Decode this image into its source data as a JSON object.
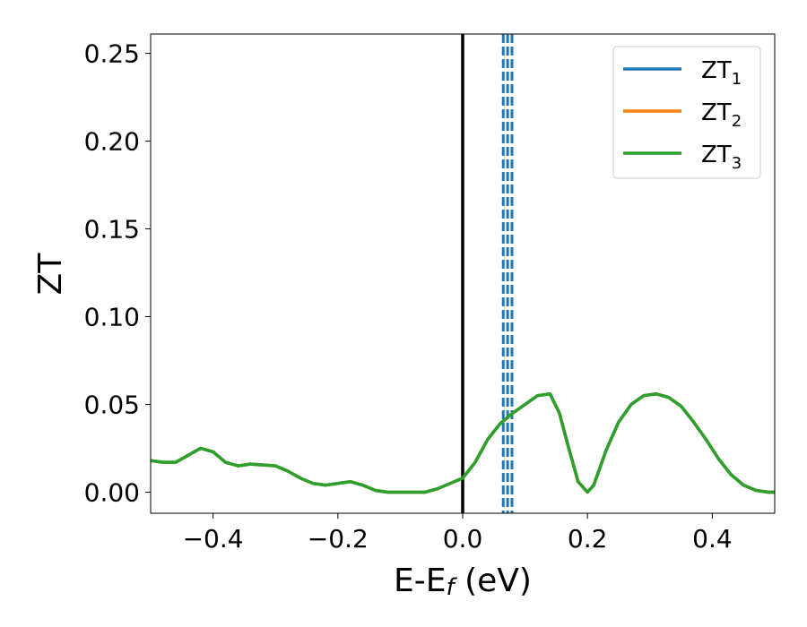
{
  "chart_data": {
    "type": "line",
    "title": "",
    "xlabel": "E-E",
    "xlabel_sub": "f",
    "xlabel_unit": " (eV)",
    "ylabel": "ZT",
    "xlim": [
      -0.5,
      0.5
    ],
    "ylim": [
      -0.012,
      0.261
    ],
    "xticks": [
      -0.4,
      -0.2,
      0.0,
      0.2,
      0.4
    ],
    "xtick_labels": [
      "−0.4",
      "−0.2",
      "0.0",
      "0.2",
      "0.4"
    ],
    "yticks": [
      0.0,
      0.05,
      0.1,
      0.15,
      0.2,
      0.25
    ],
    "ytick_labels": [
      "0.00",
      "0.05",
      "0.10",
      "0.15",
      "0.20",
      "0.25"
    ],
    "grid": false,
    "legend_position": "top-right",
    "x": [
      -0.5,
      -0.48,
      -0.46,
      -0.44,
      -0.42,
      -0.4,
      -0.38,
      -0.36,
      -0.34,
      -0.3,
      -0.28,
      -0.26,
      -0.24,
      -0.22,
      -0.2,
      -0.18,
      -0.16,
      -0.14,
      -0.12,
      -0.1,
      -0.08,
      -0.06,
      -0.04,
      -0.02,
      0.0,
      0.02,
      0.04,
      0.06,
      0.08,
      0.1,
      0.12,
      0.14,
      0.155,
      0.17,
      0.185,
      0.2,
      0.21,
      0.23,
      0.25,
      0.27,
      0.29,
      0.31,
      0.33,
      0.35,
      0.37,
      0.39,
      0.41,
      0.43,
      0.45,
      0.47,
      0.49,
      0.5
    ],
    "series": [
      {
        "name": "ZT",
        "name_sub": "1",
        "color": "#1f77b4",
        "values": [
          0.018,
          0.017,
          0.017,
          0.021,
          0.025,
          0.023,
          0.017,
          0.015,
          0.016,
          0.015,
          0.012,
          0.008,
          0.005,
          0.004,
          0.005,
          0.006,
          0.004,
          0.001,
          0.0,
          0.0,
          0.0,
          0.0,
          0.002,
          0.005,
          0.008,
          0.017,
          0.03,
          0.039,
          0.045,
          0.05,
          0.055,
          0.056,
          0.045,
          0.025,
          0.006,
          0.0,
          0.004,
          0.024,
          0.04,
          0.05,
          0.055,
          0.056,
          0.054,
          0.049,
          0.04,
          0.03,
          0.019,
          0.01,
          0.004,
          0.001,
          0.0,
          0.0
        ]
      },
      {
        "name": "ZT",
        "name_sub": "2",
        "color": "#ff7f0e",
        "values": [
          0.018,
          0.017,
          0.017,
          0.021,
          0.025,
          0.023,
          0.017,
          0.015,
          0.016,
          0.015,
          0.012,
          0.008,
          0.005,
          0.004,
          0.005,
          0.006,
          0.004,
          0.001,
          0.0,
          0.0,
          0.0,
          0.0,
          0.002,
          0.005,
          0.008,
          0.017,
          0.03,
          0.039,
          0.045,
          0.05,
          0.055,
          0.056,
          0.045,
          0.025,
          0.006,
          0.0,
          0.004,
          0.024,
          0.04,
          0.05,
          0.055,
          0.056,
          0.054,
          0.049,
          0.04,
          0.03,
          0.019,
          0.01,
          0.004,
          0.001,
          0.0,
          0.0
        ]
      },
      {
        "name": "ZT",
        "name_sub": "3",
        "color": "#2ca02c",
        "values": [
          0.018,
          0.017,
          0.017,
          0.021,
          0.025,
          0.023,
          0.017,
          0.015,
          0.016,
          0.015,
          0.012,
          0.008,
          0.005,
          0.004,
          0.005,
          0.006,
          0.004,
          0.001,
          0.0,
          0.0,
          0.0,
          0.0,
          0.002,
          0.005,
          0.008,
          0.017,
          0.03,
          0.039,
          0.045,
          0.05,
          0.055,
          0.056,
          0.045,
          0.025,
          0.006,
          0.0,
          0.004,
          0.024,
          0.04,
          0.05,
          0.055,
          0.056,
          0.054,
          0.049,
          0.04,
          0.03,
          0.019,
          0.01,
          0.004,
          0.001,
          0.0,
          0.0
        ]
      }
    ],
    "vertical_lines": [
      {
        "x": 0.0,
        "color": "#000000",
        "style": "solid"
      },
      {
        "x": 0.065,
        "color": "#1f77b4",
        "style": "dashed"
      },
      {
        "x": 0.072,
        "color": "#1f77b4",
        "style": "dashed"
      },
      {
        "x": 0.079,
        "color": "#1f77b4",
        "style": "dashed"
      }
    ]
  }
}
